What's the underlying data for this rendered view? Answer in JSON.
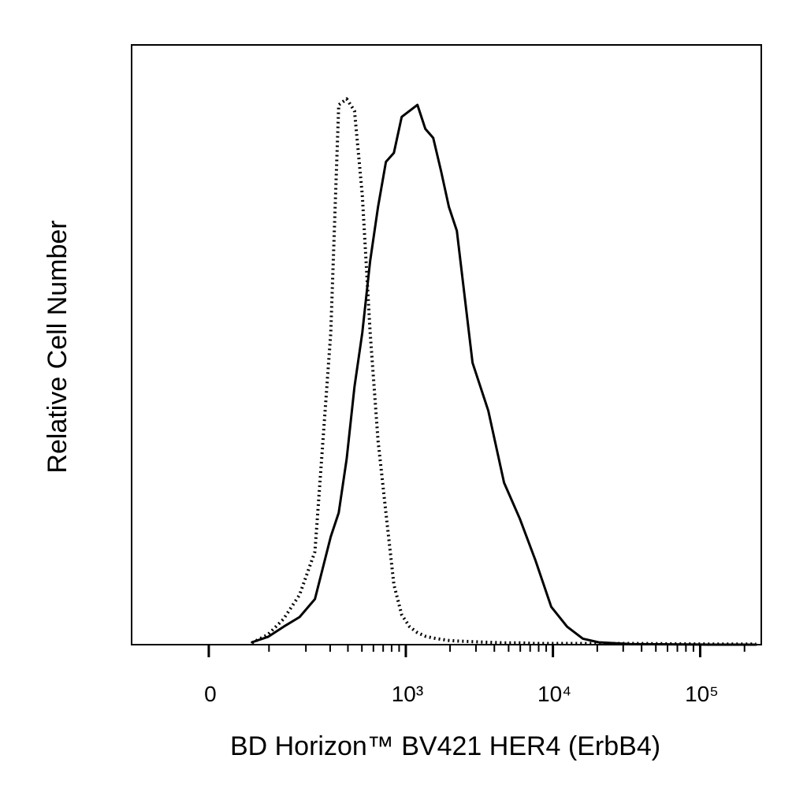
{
  "chart_data": {
    "type": "line",
    "xlabel": "BD Horizon™ BV421 HER4 (ErbB4)",
    "ylabel": "Relative Cell Number",
    "xscale": "biexponential",
    "xlim": [
      -140,
      260000
    ],
    "ylim": [
      0,
      100
    ],
    "xticks": [
      0,
      {
        "value": 1000,
        "label": "10³"
      },
      {
        "value": 10000,
        "label": "10⁴"
      },
      {
        "value": 100000,
        "label": "10⁵"
      }
    ],
    "xminorticks": [
      100,
      200,
      300,
      400,
      500,
      600,
      700,
      800,
      900,
      2000,
      3000,
      4000,
      5000,
      6000,
      7000,
      8000,
      9000,
      20000,
      30000,
      40000,
      50000,
      60000,
      70000,
      80000,
      90000,
      200000
    ],
    "x": [
      67,
      98,
      134,
      179,
      233,
      303,
      345,
      392,
      444,
      503,
      570,
      646,
      731,
      829,
      937,
      1061,
      1200,
      1358,
      1536,
      1737,
      1965,
      2224,
      2845,
      3639,
      4655,
      5960,
      7620,
      9740,
      12480,
      15960,
      20400,
      33400,
      114400,
      239700
    ],
    "series": [
      {
        "color": "#000000",
        "style": "dotted",
        "values": [
          0.3,
          1.7,
          4.3,
          8.3,
          15.5,
          52,
          90,
          91,
          89,
          75,
          52,
          34,
          22,
          10,
          5,
          3,
          2,
          1.4,
          1.1,
          0.9,
          0.7,
          0.6,
          0.5,
          0.4,
          0.3,
          0.3,
          0.2,
          0.2,
          0.2,
          0.2,
          0.2,
          0.2,
          0.1,
          0.1
        ]
      },
      {
        "color": "#000000",
        "style": "solid",
        "values": [
          0.4,
          1.3,
          3,
          4.6,
          7.6,
          18,
          22,
          31,
          43,
          52,
          64,
          73,
          80.5,
          82,
          88,
          89,
          90,
          86,
          84.5,
          79,
          73,
          69,
          47,
          39,
          27,
          21,
          14,
          6.3,
          3,
          1,
          0.4,
          0.1,
          0,
          0
        ]
      }
    ]
  }
}
